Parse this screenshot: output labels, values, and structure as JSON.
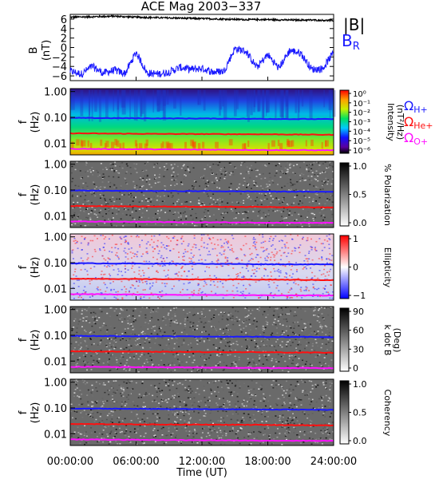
{
  "chart_data": {
    "type": "heatmap",
    "title": "ACE Mag 2003−337",
    "xlabel": "Time (UT)",
    "x_ticks": [
      "00:00:00",
      "06:00:00",
      "12:00:00",
      "18:00:00",
      "24:00:00"
    ],
    "x_range_hours": [
      0,
      24
    ],
    "top_panel": {
      "type": "line",
      "ylabel": "B",
      "yunit": "(nT)",
      "ylim": [
        -7,
        7
      ],
      "yticks": [
        6,
        4,
        2,
        0,
        -2,
        -4,
        -6
      ],
      "series": [
        {
          "name": "|B|",
          "color": "#000000",
          "x_hours": [
            0,
            2,
            4,
            6,
            8,
            10,
            12,
            14,
            16,
            18,
            20,
            22,
            24
          ],
          "values": [
            6.4,
            6.5,
            6.6,
            6.4,
            6.3,
            6.2,
            6.1,
            6.0,
            5.9,
            5.9,
            5.8,
            5.8,
            5.7
          ]
        },
        {
          "name": "R",
          "color": "#1a1aff",
          "x_hours": [
            0,
            1,
            2,
            3,
            4,
            5,
            6,
            7,
            8,
            9,
            10,
            11,
            12,
            13,
            14,
            15,
            16,
            17,
            18,
            19,
            20,
            21,
            22,
            23,
            24
          ],
          "values": [
            -5,
            -5.6,
            -4,
            -5.4,
            -4.8,
            -5.5,
            -1,
            -5.4,
            -5.6,
            -5.2,
            -4.2,
            -4.6,
            -4.4,
            -5.2,
            -5.0,
            -0.2,
            -0.8,
            -4.2,
            -1.5,
            -4.4,
            -0.6,
            -1.2,
            -4.6,
            -4.5,
            -1.0
          ]
        }
      ]
    },
    "spectral_panels": [
      {
        "ylabel": "f",
        "yunit": "(Hz)",
        "yticks": [
          "1.00",
          "0.10",
          "0.01"
        ],
        "cbar_label": "Intensity",
        "cbar_unit": "(nT²/Hz)",
        "cbar_ticks": [
          "10⁰",
          "10⁻¹",
          "10⁻²",
          "10⁻³",
          "10⁻⁴",
          "10⁻⁵",
          "10⁻⁶"
        ]
      },
      {
        "ylabel": "f",
        "yunit": "(Hz)",
        "yticks": [
          "1.00",
          "0.10",
          "0.01"
        ],
        "cbar_label": "% Polarization",
        "cbar_ticks": [
          "1.0",
          "0.5",
          "0.0"
        ]
      },
      {
        "ylabel": "f",
        "yunit": "(Hz)",
        "yticks": [
          "1.00",
          "0.10",
          "0.01"
        ],
        "cbar_label": "Ellipticity",
        "cbar_ticks": [
          "1",
          "0",
          "−1"
        ]
      },
      {
        "ylabel": "f",
        "yunit": "(Hz)",
        "yticks": [
          "1.00",
          "0.10",
          "0.01"
        ],
        "cbar_label": "k dot B",
        "cbar_unit": "(Deg)",
        "cbar_ticks": [
          "90",
          "60",
          "30",
          "0"
        ]
      },
      {
        "ylabel": "f",
        "yunit": "(Hz)",
        "yticks": [
          "1.00",
          "0.10",
          "0.01"
        ],
        "cbar_label": "Coherency",
        "cbar_ticks": [
          "1.0",
          "0.5",
          "0.0"
        ]
      }
    ],
    "gyrofrequency_lines": [
      {
        "name": "H+",
        "color": "#1a1aff",
        "x_hours": [
          0,
          6,
          12,
          18,
          24
        ],
        "values_hz": [
          0.095,
          0.092,
          0.09,
          0.087,
          0.085
        ]
      },
      {
        "name": "He+",
        "color": "#ff1010",
        "x_hours": [
          0,
          6,
          12,
          18,
          24
        ],
        "values_hz": [
          0.024,
          0.023,
          0.0225,
          0.022,
          0.021
        ]
      },
      {
        "name": "O+",
        "color": "#ff10ff",
        "x_hours": [
          0,
          6,
          12,
          18,
          24
        ],
        "values_hz": [
          0.006,
          0.0058,
          0.0056,
          0.0054,
          0.0053
        ]
      }
    ],
    "legend_top": {
      "B": "|B|",
      "BR_main": "B",
      "BR_sub": "R"
    },
    "legend_gyro": {
      "omega": "Ω",
      "h": "H+",
      "he": "He+",
      "o": "O+"
    },
    "colors": {
      "blue": "#1a1aff",
      "red": "#ff1010",
      "magenta": "#ff10ff"
    }
  }
}
